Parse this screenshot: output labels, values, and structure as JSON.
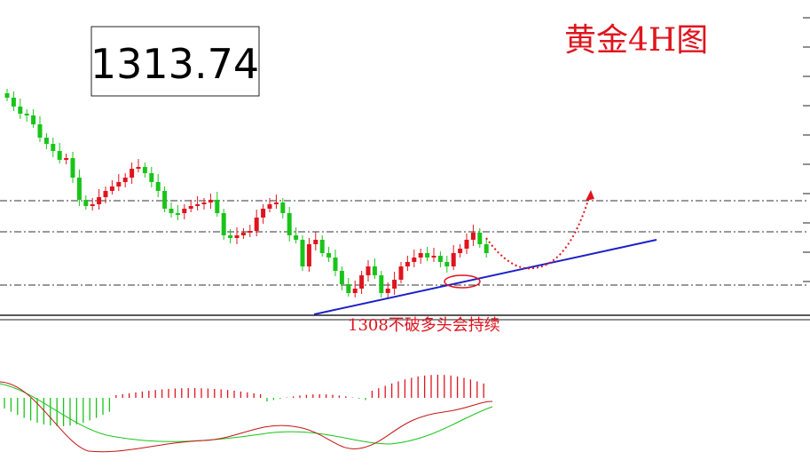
{
  "price_label": "1313.74",
  "title": "黄金4H图",
  "annotation": "1308不破多头会持续"
}
